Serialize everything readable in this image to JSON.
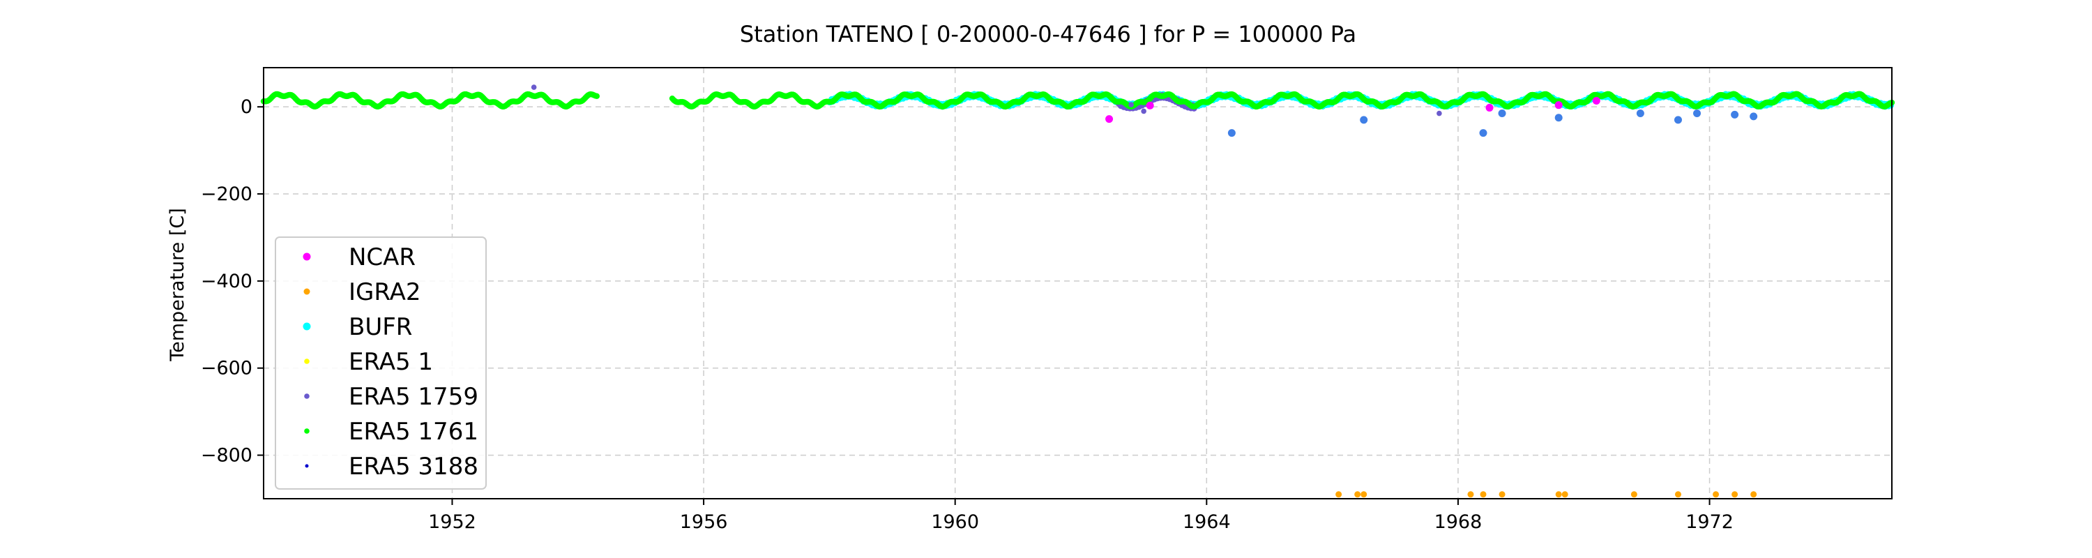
{
  "chart_data": {
    "type": "scatter",
    "title": "Station  TATENO [ 0-20000-0-47646 ]  for P = 100000 Pa",
    "xlabel": "",
    "ylabel": "Temperature [C]",
    "xlim": [
      1949.0,
      1974.9
    ],
    "ylim": [
      -900,
      90
    ],
    "xticks": [
      1952,
      1956,
      1960,
      1964,
      1968,
      1972
    ],
    "yticks": [
      0,
      -200,
      -400,
      -600,
      -800
    ],
    "ytick_labels": [
      "0",
      "−200",
      "−400",
      "−600",
      "−800"
    ],
    "grid": true,
    "legend_position": "lower-left",
    "series": [
      {
        "name": "NCAR",
        "color": "#ff00ff",
        "marker_size": "large",
        "points": [
          [
            1962.45,
            -28
          ],
          [
            1963.1,
            3
          ],
          [
            1968.5,
            -2
          ],
          [
            1969.6,
            4
          ],
          [
            1970.2,
            14
          ]
        ]
      },
      {
        "name": "IGRA2",
        "color": "#ffa500",
        "marker_size": "medium",
        "points": [
          [
            1966.1,
            -890
          ],
          [
            1966.4,
            -890
          ],
          [
            1966.5,
            -890
          ],
          [
            1968.2,
            -890
          ],
          [
            1968.4,
            -890
          ],
          [
            1968.7,
            -890
          ],
          [
            1969.6,
            -890
          ],
          [
            1969.7,
            -890
          ],
          [
            1970.8,
            -890
          ],
          [
            1971.5,
            -890
          ],
          [
            1972.1,
            -890
          ],
          [
            1972.4,
            -890
          ],
          [
            1972.7,
            -890
          ]
        ]
      },
      {
        "name": "BUFR",
        "color": "#00ffff",
        "marker_size": "large",
        "seasonal": {
          "from": 1958.0,
          "to": 1974.9,
          "mean": 15,
          "amplitude": 11
        },
        "points": [
          [
            1964.4,
            -60
          ],
          [
            1966.5,
            -30
          ],
          [
            1968.4,
            -60
          ],
          [
            1968.7,
            -15
          ],
          [
            1969.6,
            -25
          ],
          [
            1970.9,
            -15
          ],
          [
            1971.5,
            -30
          ],
          [
            1971.8,
            -15
          ],
          [
            1972.4,
            -18
          ],
          [
            1972.7,
            -22
          ]
        ]
      },
      {
        "name": "ERA5 1",
        "color": "#ffff00",
        "marker_size": "small",
        "points": []
      },
      {
        "name": "ERA5 1759",
        "color": "#6a5acd",
        "marker_size": "small",
        "seasonal": {
          "from": 1962.6,
          "to": 1963.8,
          "mean": 12,
          "amplitude": 12
        },
        "points": [
          [
            1953.3,
            45
          ],
          [
            1962.8,
            5
          ],
          [
            1963.0,
            -10
          ],
          [
            1967.7,
            -15
          ]
        ]
      },
      {
        "name": "ERA5 1761",
        "color": "#00ff00",
        "marker_size": "small",
        "seasonal_ranges": [
          [
            1949.0,
            1954.3
          ],
          [
            1955.5,
            1974.9
          ]
        ],
        "mean": 16,
        "amplitude": 12,
        "points": []
      },
      {
        "name": "ERA5 3188",
        "color": "#0000cd",
        "marker_size": "tiny",
        "points": []
      }
    ]
  }
}
